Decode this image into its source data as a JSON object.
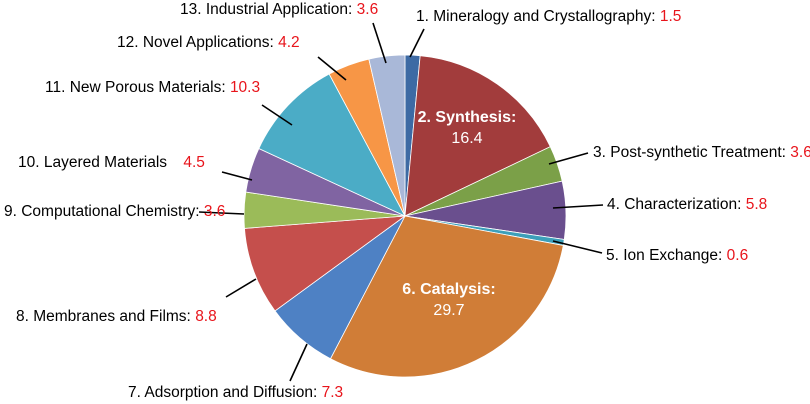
{
  "chart_data": {
    "type": "pie",
    "title": "",
    "start_angle_deg": 0,
    "direction": "clockwise",
    "legend": "none",
    "slices": [
      {
        "num": "1.",
        "name": "Mineralogy and Crystallography",
        "sep": ":",
        "value": 1.5,
        "color": "#3d6aa4"
      },
      {
        "num": "2.",
        "name": "Synthesis",
        "sep": ":",
        "value": 16.4,
        "color": "#a23c3c"
      },
      {
        "num": "3.",
        "name": "Post-synthetic Treatment",
        "sep": ":",
        "value": 3.6,
        "color": "#7ba048"
      },
      {
        "num": "4.",
        "name": "Characterization",
        "sep": ":",
        "value": 5.8,
        "color": "#6a4f8e"
      },
      {
        "num": "5.",
        "name": "Ion Exchange",
        "sep": ":",
        "value": 0.6,
        "color": "#3c9fb9"
      },
      {
        "num": "6.",
        "name": "Catalysis",
        "sep": ":",
        "value": 29.7,
        "color": "#d07d37"
      },
      {
        "num": "7.",
        "name": "Adsorption and Diffusion",
        "sep": ":",
        "value": 7.3,
        "color": "#4e81c4"
      },
      {
        "num": "8.",
        "name": "Membranes and Films",
        "sep": ":",
        "value": 8.8,
        "color": "#c54f4c"
      },
      {
        "num": "9.",
        "name": "Computational Chemistry",
        "sep": ":",
        "value": 3.6,
        "color": "#9bbb59"
      },
      {
        "num": "10.",
        "name": "Layered Materials",
        "sep": "",
        "value": 4.5,
        "color": "#8064a2"
      },
      {
        "num": "11.",
        "name": "New Porous Materials",
        "sep": ":",
        "value": 10.3,
        "color": "#4bacc6"
      },
      {
        "num": "12.",
        "name": "Novel Applications",
        "sep": ":",
        "value": 4.2,
        "color": "#f79646"
      },
      {
        "num": "13.",
        "name": "Industrial Application",
        "sep": ":",
        "value": 3.6,
        "color": "#a9b8d8"
      }
    ]
  }
}
